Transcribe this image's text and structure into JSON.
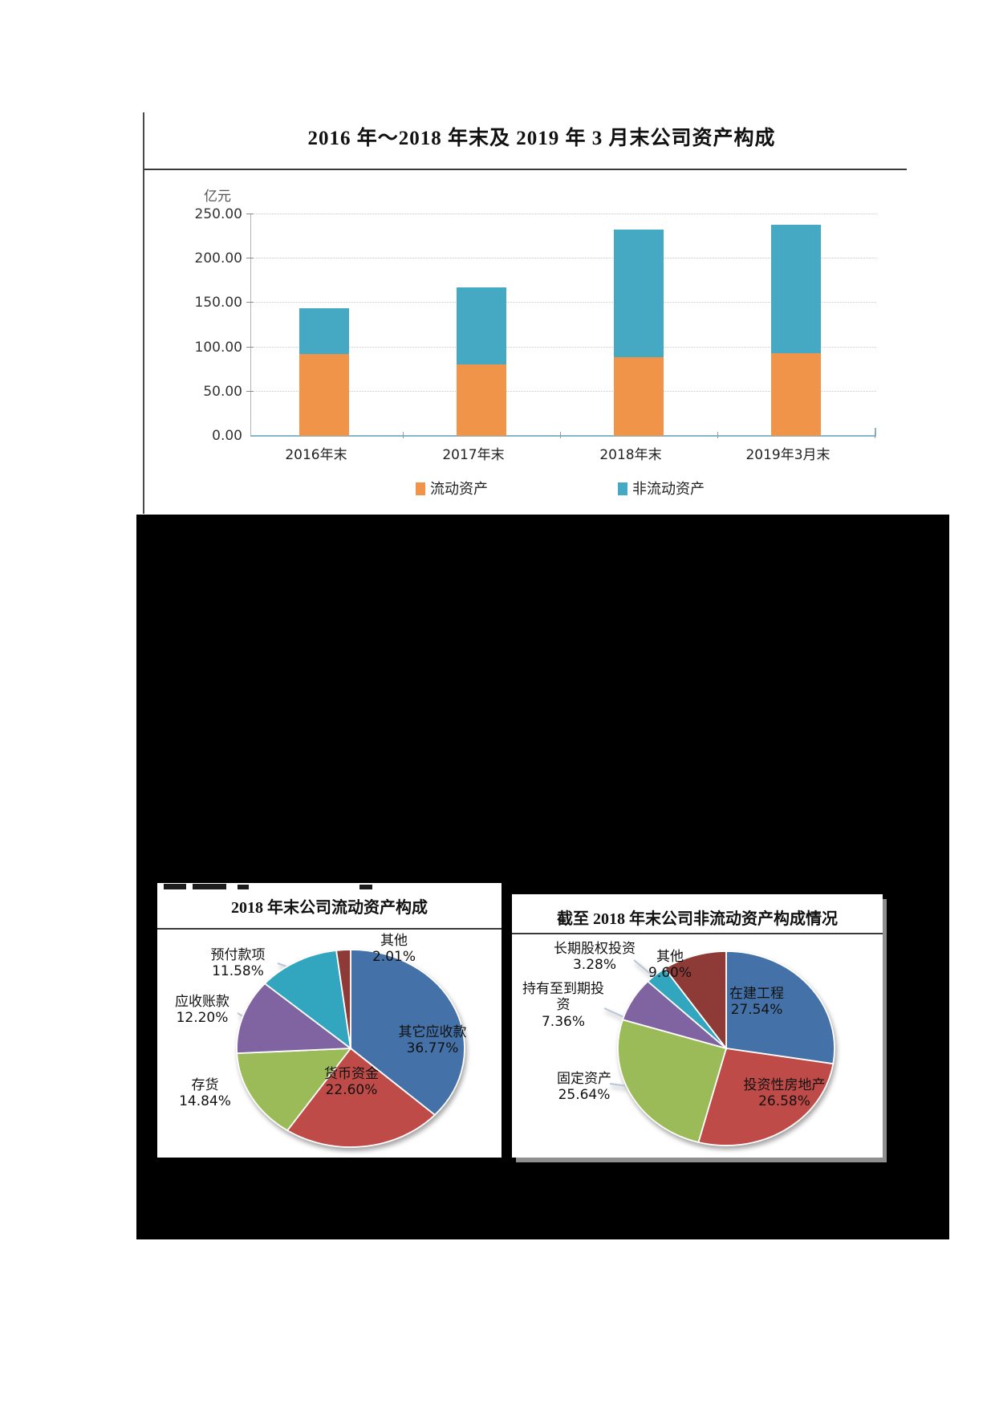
{
  "bar_chart": {
    "unit_label": "亿元",
    "y_tick_labels": [
      "250.00",
      "200.00",
      "150.00",
      "100.00",
      "50.00",
      "0.00"
    ]
  },
  "chart_data": [
    {
      "type": "bar",
      "stacked": true,
      "title": "2016 年～2018 年末及 2019 年 3 月末公司资产构成",
      "ylabel": "亿元",
      "ylim": [
        0,
        250
      ],
      "ytick_interval": 50,
      "grid": "dotted-horizontal",
      "legend_position": "bottom",
      "categories": [
        "2016年末",
        "2017年末",
        "2018年末",
        "2019年3月末"
      ],
      "series": [
        {
          "name": "流动资产",
          "color": "#F0944A",
          "values": [
            92,
            81,
            89,
            93
          ]
        },
        {
          "name": "非流动资产",
          "color": "#45A9C3",
          "values": [
            52,
            87,
            144,
            145
          ]
        }
      ]
    },
    {
      "type": "pie",
      "title": "2018 年末公司流动资产构成",
      "slices": [
        {
          "label": "其它应收款",
          "value": 36.77,
          "pct_label": "36.77%",
          "color": "#4472A8"
        },
        {
          "label": "货币资金",
          "value": 22.6,
          "pct_label": "22.60%",
          "color": "#BE4B48"
        },
        {
          "label": "存货",
          "value": 14.84,
          "pct_label": "14.84%",
          "color": "#9BBB59"
        },
        {
          "label": "应收账款",
          "value": 12.2,
          "pct_label": "12.20%",
          "color": "#8064A2"
        },
        {
          "label": "预付款项",
          "value": 11.58,
          "pct_label": "11.58%",
          "color": "#31A6BE"
        },
        {
          "label": "其他",
          "value": 2.01,
          "pct_label": "2.01%",
          "color": "#8E3B38"
        }
      ]
    },
    {
      "type": "pie",
      "title": "截至 2018 年末公司非流动资产构成情况",
      "slices": [
        {
          "label": "在建工程",
          "value": 27.54,
          "pct_label": "27.54%",
          "color": "#4472A8"
        },
        {
          "label": "投资性房地产",
          "value": 26.58,
          "pct_label": "26.58%",
          "color": "#BE4B48"
        },
        {
          "label": "固定资产",
          "value": 25.64,
          "pct_label": "25.64%",
          "color": "#9BBB59"
        },
        {
          "label": "持有至到期投资",
          "value": 7.36,
          "pct_label": "7.36%",
          "color": "#8064A2"
        },
        {
          "label": "长期股权投资",
          "value": 3.28,
          "pct_label": "3.28%",
          "color": "#31A6BE"
        },
        {
          "label": "其他",
          "value": 9.6,
          "pct_label": "9.60%",
          "color": "#8E3B38"
        }
      ]
    }
  ]
}
